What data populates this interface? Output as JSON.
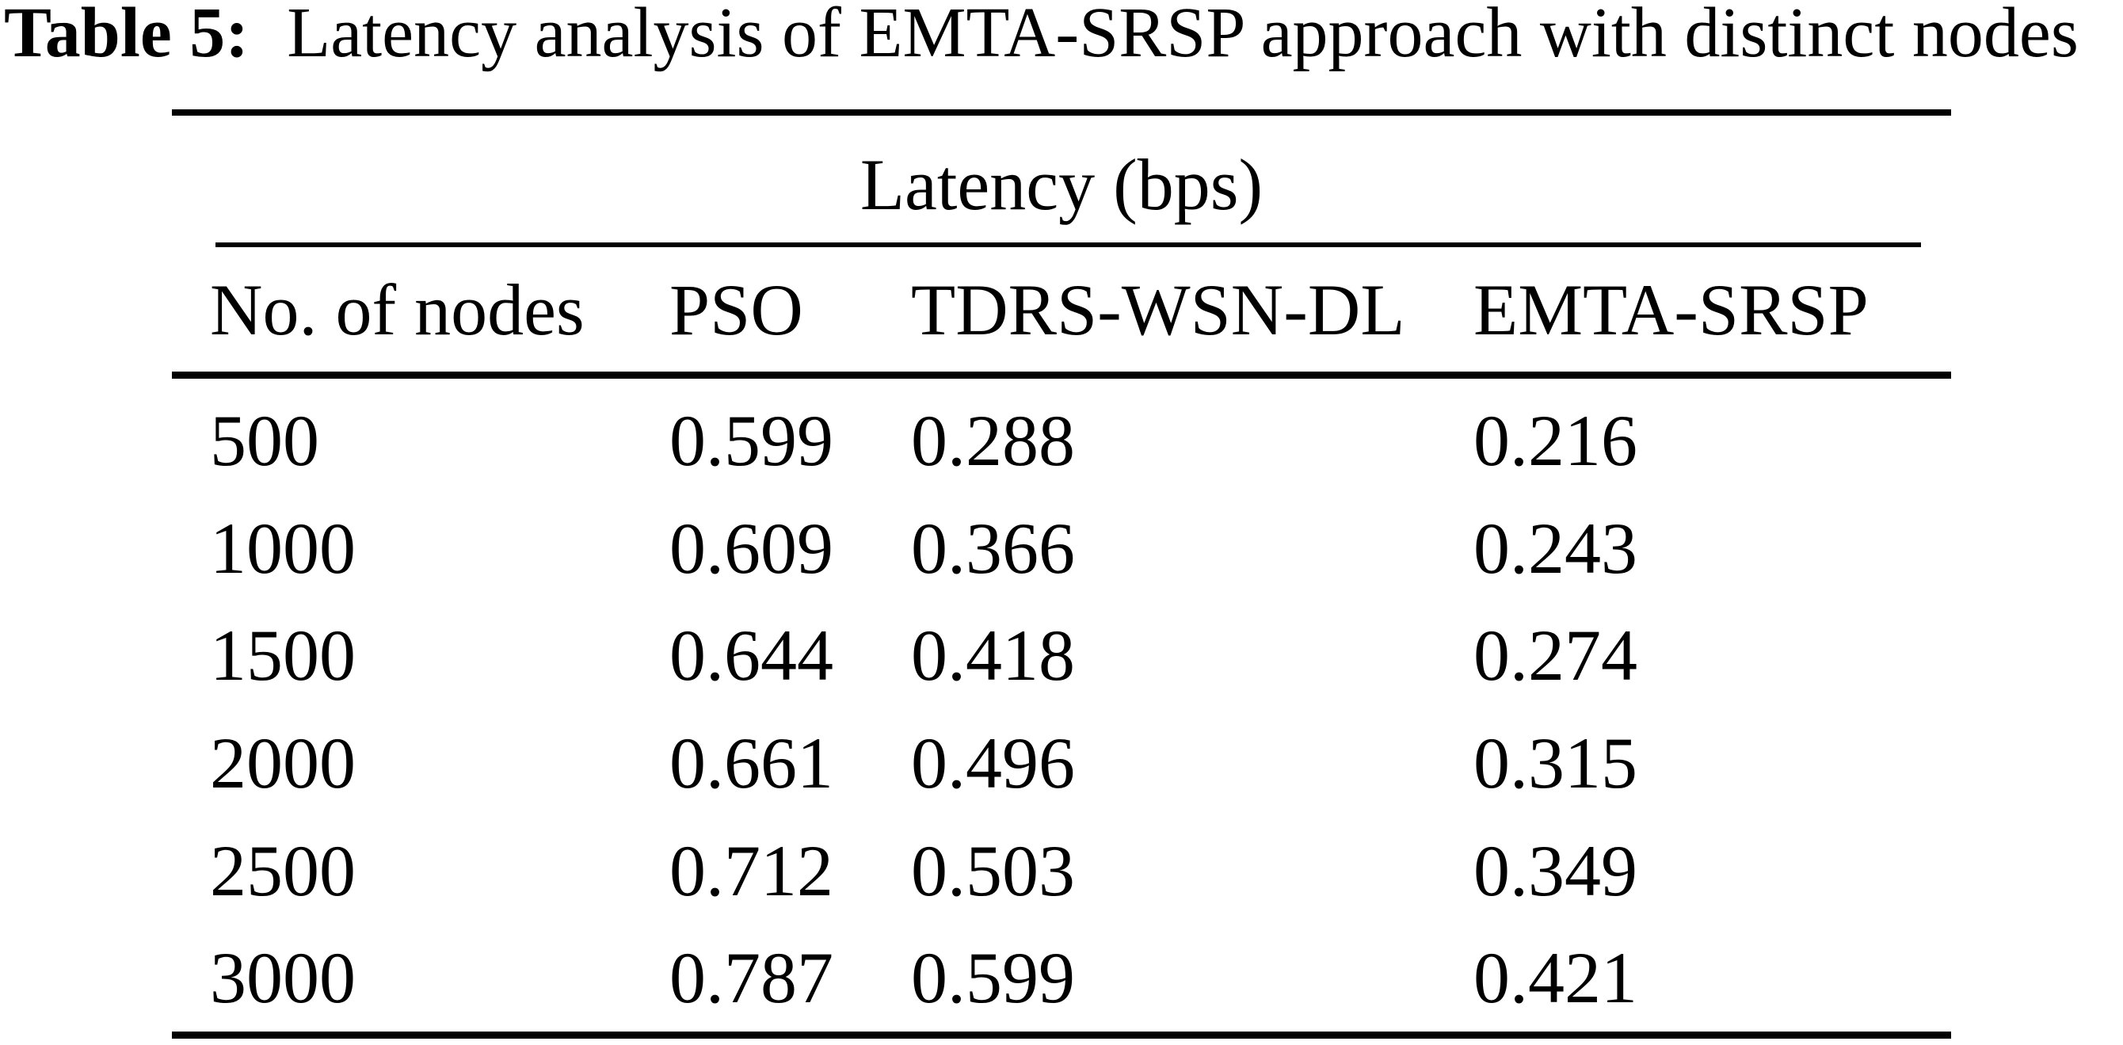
{
  "caption": {
    "label": "Table 5:",
    "text": "Latency analysis of EMTA-SRSP approach with distinct nodes"
  },
  "table": {
    "span_header": "Latency (bps)",
    "columns": [
      "No. of nodes",
      "PSO",
      "TDRS-WSN-DL",
      "EMTA-SRSP"
    ],
    "rows": [
      [
        "500",
        "0.599",
        "0.288",
        "0.216"
      ],
      [
        "1000",
        "0.609",
        "0.366",
        "0.243"
      ],
      [
        "1500",
        "0.644",
        "0.418",
        "0.274"
      ],
      [
        "2000",
        "0.661",
        "0.496",
        "0.315"
      ],
      [
        "2500",
        "0.712",
        "0.503",
        "0.349"
      ],
      [
        "3000",
        "0.787",
        "0.599",
        "0.421"
      ]
    ]
  },
  "chart_data": {
    "type": "table",
    "title": "Table 5: Latency analysis of EMTA-SRSP approach with distinct nodes",
    "group_header": "Latency (bps)",
    "unit": "bps",
    "columns": [
      "No. of nodes",
      "PSO",
      "TDRS-WSN-DL",
      "EMTA-SRSP"
    ],
    "categories": [
      500,
      1000,
      1500,
      2000,
      2500,
      3000
    ],
    "series": [
      {
        "name": "PSO",
        "values": [
          0.599,
          0.609,
          0.644,
          0.661,
          0.712,
          0.787
        ]
      },
      {
        "name": "TDRS-WSN-DL",
        "values": [
          0.288,
          0.366,
          0.418,
          0.496,
          0.503,
          0.599
        ]
      },
      {
        "name": "EMTA-SRSP",
        "values": [
          0.216,
          0.243,
          0.274,
          0.315,
          0.349,
          0.421
        ]
      }
    ],
    "colors": {
      "text": "#000000",
      "background": "#ffffff",
      "rule": "#000000"
    }
  }
}
